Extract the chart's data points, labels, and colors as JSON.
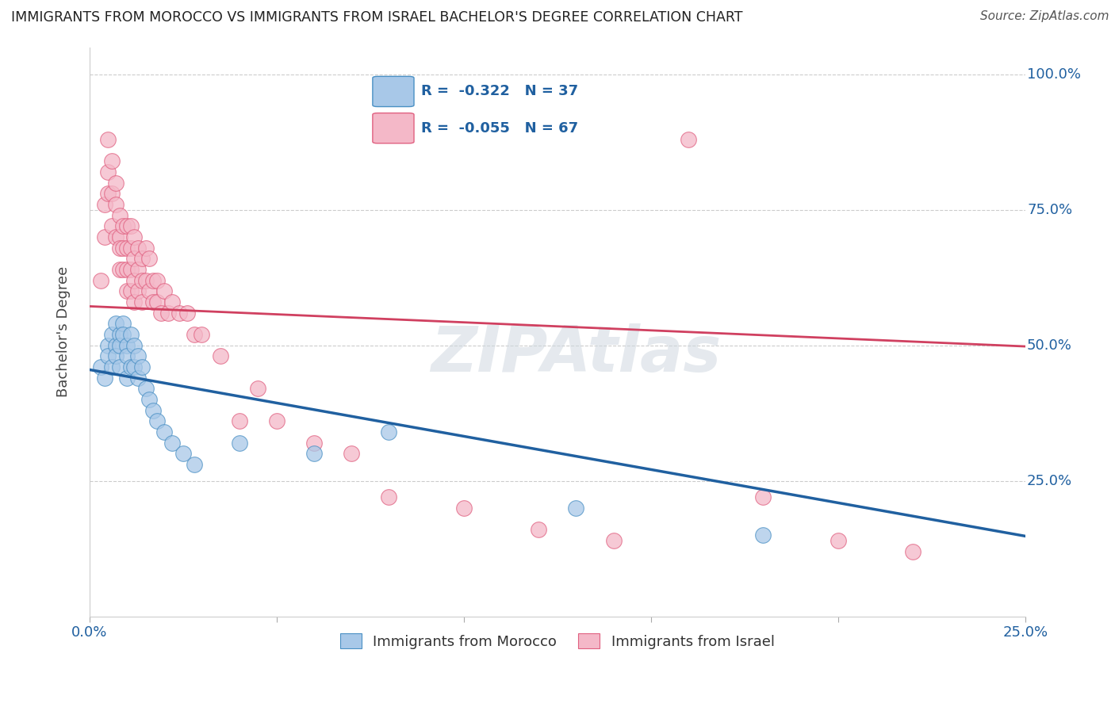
{
  "title": "IMMIGRANTS FROM MOROCCO VS IMMIGRANTS FROM ISRAEL BACHELOR'S DEGREE CORRELATION CHART",
  "source": "Source: ZipAtlas.com",
  "ylabel": "Bachelor's Degree",
  "xlim": [
    0.0,
    0.25
  ],
  "ylim": [
    0.0,
    1.05
  ],
  "x_ticks": [
    0.0,
    0.05,
    0.1,
    0.15,
    0.2,
    0.25
  ],
  "x_tick_labels": [
    "0.0%",
    "",
    "",
    "",
    "",
    "25.0%"
  ],
  "y_ticks": [
    0.25,
    0.5,
    0.75,
    1.0
  ],
  "y_tick_labels": [
    "25.0%",
    "50.0%",
    "75.0%",
    "100.0%"
  ],
  "blue_R": -0.322,
  "blue_N": 37,
  "pink_R": -0.055,
  "pink_N": 67,
  "blue_fill": "#a8c8e8",
  "pink_fill": "#f4b8c8",
  "blue_edge": "#4a90c4",
  "pink_edge": "#e06080",
  "blue_line_color": "#2060a0",
  "pink_line_color": "#d04060",
  "watermark": "ZIPAtlas",
  "blue_x": [
    0.003,
    0.004,
    0.005,
    0.005,
    0.006,
    0.006,
    0.007,
    0.007,
    0.007,
    0.008,
    0.008,
    0.008,
    0.009,
    0.009,
    0.01,
    0.01,
    0.01,
    0.011,
    0.011,
    0.012,
    0.012,
    0.013,
    0.013,
    0.014,
    0.015,
    0.016,
    0.017,
    0.018,
    0.02,
    0.022,
    0.025,
    0.028,
    0.04,
    0.06,
    0.08,
    0.13,
    0.18
  ],
  "blue_y": [
    0.46,
    0.44,
    0.5,
    0.48,
    0.52,
    0.46,
    0.5,
    0.48,
    0.54,
    0.52,
    0.46,
    0.5,
    0.54,
    0.52,
    0.5,
    0.48,
    0.44,
    0.46,
    0.52,
    0.5,
    0.46,
    0.48,
    0.44,
    0.46,
    0.42,
    0.4,
    0.38,
    0.36,
    0.34,
    0.32,
    0.3,
    0.28,
    0.32,
    0.3,
    0.34,
    0.2,
    0.15
  ],
  "pink_x": [
    0.003,
    0.004,
    0.004,
    0.005,
    0.005,
    0.005,
    0.006,
    0.006,
    0.006,
    0.007,
    0.007,
    0.007,
    0.008,
    0.008,
    0.008,
    0.008,
    0.009,
    0.009,
    0.009,
    0.01,
    0.01,
    0.01,
    0.01,
    0.011,
    0.011,
    0.011,
    0.011,
    0.012,
    0.012,
    0.012,
    0.012,
    0.013,
    0.013,
    0.013,
    0.014,
    0.014,
    0.014,
    0.015,
    0.015,
    0.016,
    0.016,
    0.017,
    0.017,
    0.018,
    0.018,
    0.019,
    0.02,
    0.021,
    0.022,
    0.024,
    0.026,
    0.028,
    0.03,
    0.035,
    0.04,
    0.045,
    0.05,
    0.06,
    0.07,
    0.08,
    0.1,
    0.12,
    0.14,
    0.16,
    0.18,
    0.2,
    0.22
  ],
  "pink_y": [
    0.62,
    0.7,
    0.76,
    0.78,
    0.82,
    0.88,
    0.84,
    0.78,
    0.72,
    0.8,
    0.76,
    0.7,
    0.74,
    0.7,
    0.68,
    0.64,
    0.72,
    0.68,
    0.64,
    0.72,
    0.68,
    0.64,
    0.6,
    0.72,
    0.68,
    0.64,
    0.6,
    0.7,
    0.66,
    0.62,
    0.58,
    0.68,
    0.64,
    0.6,
    0.66,
    0.62,
    0.58,
    0.68,
    0.62,
    0.66,
    0.6,
    0.62,
    0.58,
    0.62,
    0.58,
    0.56,
    0.6,
    0.56,
    0.58,
    0.56,
    0.56,
    0.52,
    0.52,
    0.48,
    0.36,
    0.42,
    0.36,
    0.32,
    0.3,
    0.22,
    0.2,
    0.16,
    0.14,
    0.88,
    0.22,
    0.14,
    0.12
  ]
}
